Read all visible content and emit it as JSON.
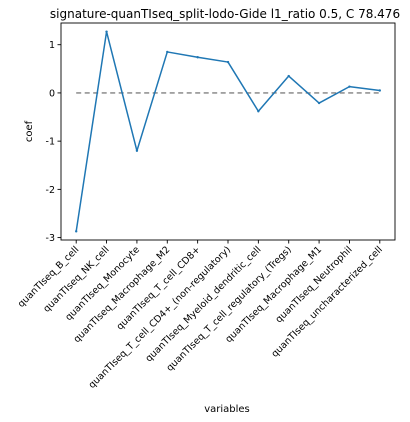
{
  "chart_data": {
    "type": "line",
    "title": "signature-quanTIseq_split-lodo-Gide l1_ratio 0.5, C 78.476",
    "xlabel": "variables",
    "ylabel": "coef",
    "categories": [
      "quanTIseq_B_cell",
      "quanTIseq_NK_cell",
      "quanTIseq_Monocyte",
      "quanTIseq_Macrophage_M2",
      "quanTIseq_T_cell_CD8+",
      "quanTIseq_T_cell_CD4+_(non-regulatory)",
      "quanTIseq_Myeloid_dendritic_cell",
      "quanTIseq_T_cell_regulatory_(Tregs)",
      "quanTIseq_Macrophage_M1",
      "quanTIseq_Neutrophil",
      "quanTIseq_uncharacterized_cell"
    ],
    "series": [
      {
        "values": [
          -2.87,
          1.27,
          -1.2,
          0.85,
          0.74,
          0.64,
          -0.38,
          0.35,
          -0.21,
          0.13,
          0.05
        ],
        "color": "#1f77b4"
      }
    ],
    "reference_line": {
      "y": 0,
      "style": "dashed",
      "color": "#808080"
    },
    "ylim": [
      -3.05,
      1.45
    ],
    "yticks": [
      -3,
      -2,
      -1,
      0,
      1
    ],
    "grid": false,
    "legend": "none"
  }
}
